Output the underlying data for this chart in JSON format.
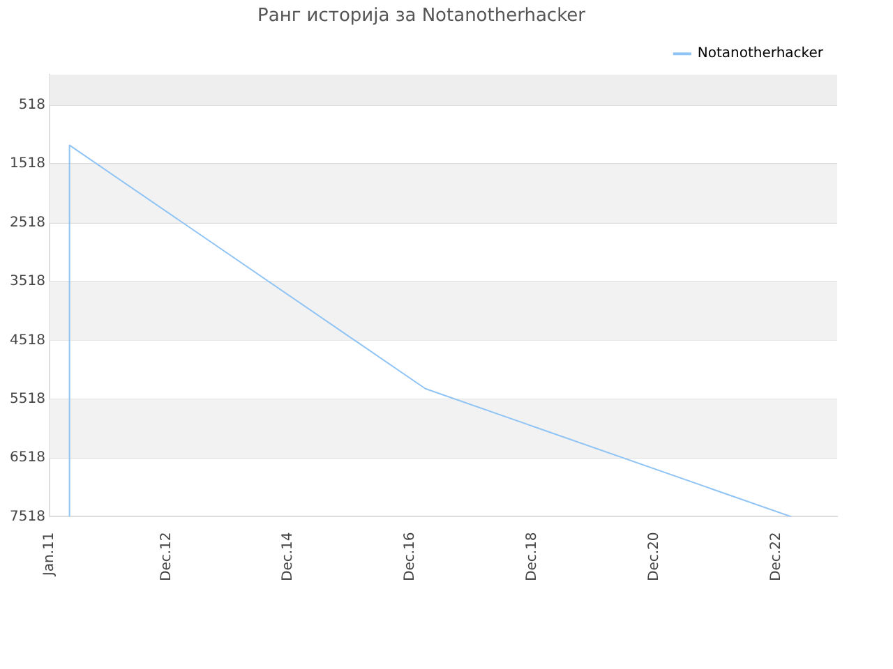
{
  "chart_data": {
    "type": "line",
    "title": "Ранг историја за Notanotherhacker",
    "x": [
      "2011-05",
      "2011-05",
      "2017-03",
      "2023-03"
    ],
    "series": [
      {
        "name": "Notanotherhacker",
        "color": "#90c4f5",
        "values": [
          7518,
          1200,
          5340,
          7518
        ]
      }
    ],
    "xlim": [
      "2011-01",
      "2023-12"
    ],
    "xticks": [
      {
        "value": "2011-01",
        "label": "Jan.11"
      },
      {
        "value": "2012-12",
        "label": "Dec.12"
      },
      {
        "value": "2014-12",
        "label": "Dec.14"
      },
      {
        "value": "2016-12",
        "label": "Dec.16"
      },
      {
        "value": "2018-12",
        "label": "Dec.18"
      },
      {
        "value": "2020-12",
        "label": "Dec.20"
      },
      {
        "value": "2022-12",
        "label": "Dec.22"
      }
    ],
    "ylim": [
      7518,
      0
    ],
    "yticks": [
      518,
      1518,
      2518,
      3518,
      4518,
      5518,
      6518,
      7518
    ],
    "bands": [
      {
        "axis": "y",
        "from": 0,
        "to": 518,
        "color": "#eeeeee"
      },
      {
        "axis": "y",
        "from": 1518,
        "to": 2518,
        "color": "#f2f2f2"
      },
      {
        "axis": "y",
        "from": 3518,
        "to": 4518,
        "color": "#f2f2f2"
      },
      {
        "axis": "y",
        "from": 5518,
        "to": 6518,
        "color": "#f2f2f2"
      }
    ],
    "grid": "y",
    "legend": "top right",
    "marker": "none",
    "line_style": "solid"
  }
}
